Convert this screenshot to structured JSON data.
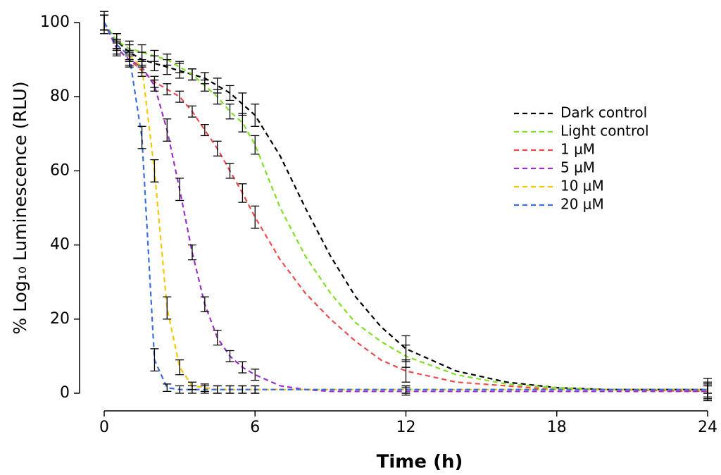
{
  "chart_data": {
    "type": "line",
    "x_label": "Time (h)",
    "y_label": "% Log₁₀ Luminescence (RLU)",
    "x": [
      0,
      0.5,
      1,
      1.5,
      2,
      2.5,
      3,
      3.5,
      4,
      4.5,
      5,
      5.5,
      6,
      7,
      8,
      9,
      10,
      11,
      12,
      14,
      16,
      18,
      20,
      24
    ],
    "xlim": [
      0,
      24
    ],
    "xticks": [
      0,
      6,
      12,
      18,
      24
    ],
    "ylim": [
      0,
      100
    ],
    "yticks": [
      0,
      20,
      40,
      60,
      80,
      100
    ],
    "grid": false,
    "legend": "upper right",
    "line_style": "dashed",
    "series": [
      {
        "name": "Dark control",
        "color": "#000000",
        "values": [
          100,
          95,
          92,
          90,
          89,
          88,
          87,
          86,
          85,
          83,
          81,
          78,
          75,
          64,
          50,
          37,
          26,
          18,
          12,
          6,
          3,
          1.5,
          1,
          1
        ],
        "errors": [
          3,
          2,
          2,
          2,
          2,
          2,
          2,
          1.5,
          1.5,
          2,
          2,
          3,
          3,
          null,
          null,
          null,
          null,
          null,
          3.5,
          null,
          null,
          null,
          null,
          3
        ]
      },
      {
        "name": "Light control",
        "color": "#7fe024",
        "values": [
          100,
          95,
          93,
          92,
          91,
          90,
          88,
          86,
          83,
          80,
          76,
          73,
          67,
          50,
          37,
          27,
          19,
          14,
          10,
          5,
          2.5,
          1.5,
          1,
          1
        ],
        "errors": [
          2,
          2,
          2,
          2,
          1.5,
          1.5,
          1.5,
          1.5,
          1.5,
          2,
          2,
          2.5,
          2.5,
          null,
          null,
          null,
          null,
          null,
          3,
          null,
          null,
          null,
          null,
          2
        ]
      },
      {
        "name": "1 µM",
        "color": "#f04a4a",
        "values": [
          100,
          93,
          90,
          87,
          84,
          82,
          80,
          76,
          71,
          66,
          60,
          54,
          47.5,
          36,
          27,
          20,
          14,
          9,
          6,
          3,
          2,
          1,
          1,
          0.5
        ],
        "errors": [
          2,
          2,
          2,
          1.5,
          1.5,
          1.5,
          1.5,
          1.5,
          1.5,
          2,
          2,
          2.5,
          3,
          null,
          null,
          null,
          null,
          null,
          3,
          null,
          null,
          null,
          null,
          2
        ]
      },
      {
        "name": "5 µM",
        "color": "#9b30c8",
        "values": [
          100,
          93,
          90,
          88,
          83,
          71,
          55,
          38,
          24,
          15,
          10,
          7,
          5,
          2,
          1,
          0.5,
          0.5,
          0.5,
          0.5,
          0.5,
          0.5,
          0.5,
          0.5,
          0.5
        ],
        "errors": [
          2,
          1.5,
          1.5,
          1.5,
          1.5,
          3,
          3,
          2,
          2,
          2,
          1.5,
          1.5,
          1.5,
          null,
          null,
          null,
          null,
          null,
          1,
          null,
          null,
          null,
          null,
          2
        ]
      },
      {
        "name": "10 µM",
        "color": "#f5c800",
        "values": [
          100,
          94,
          91,
          88,
          60,
          23,
          7,
          2,
          1.5,
          1,
          1,
          1,
          1,
          1,
          1,
          1,
          1,
          1,
          1,
          1,
          1,
          1,
          1,
          1
        ],
        "errors": [
          2,
          1.5,
          1.5,
          1.5,
          3,
          3,
          2,
          1,
          1,
          1,
          1,
          1,
          1,
          null,
          null,
          null,
          null,
          null,
          1,
          null,
          null,
          null,
          null,
          1
        ]
      },
      {
        "name": "20 µM",
        "color": "#3a6fd8",
        "values": [
          100,
          94,
          91,
          69,
          9,
          1.5,
          1,
          1,
          1,
          1,
          1,
          1,
          1,
          1,
          1,
          1,
          1,
          1,
          1,
          1,
          1,
          1,
          1,
          1
        ],
        "errors": [
          2,
          1.5,
          1.5,
          3,
          3,
          1,
          1,
          1,
          1,
          1,
          1,
          1,
          1,
          null,
          null,
          null,
          null,
          null,
          1,
          null,
          null,
          null,
          null,
          1
        ]
      }
    ]
  }
}
